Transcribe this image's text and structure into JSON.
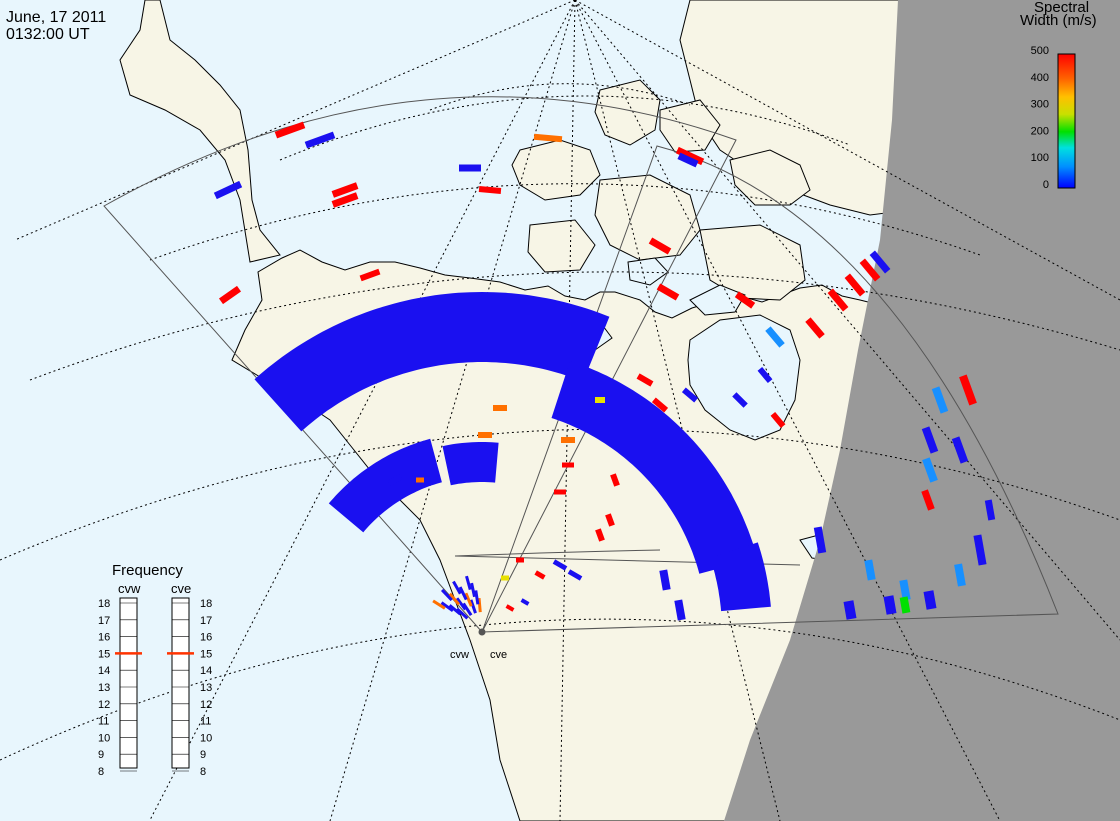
{
  "header": {
    "date": "June, 17 2011",
    "time": "0132:00 UT"
  },
  "colorbar": {
    "title_line1": "Spectral",
    "title_line2": "Width (m/s)",
    "ticks": [
      "500",
      "400",
      "300",
      "200",
      "100",
      "0"
    ],
    "colors": [
      "#0000ff",
      "#0090ff",
      "#00e0e0",
      "#00e000",
      "#c8e000",
      "#ffc000",
      "#ff6000",
      "#ff0000"
    ]
  },
  "frequency_panel": {
    "title": "Frequency",
    "left_label": "cvw",
    "right_label": "cve",
    "scale": [
      "18",
      "17",
      "16",
      "15",
      "14",
      "13",
      "12",
      "11",
      "10",
      "9",
      "8"
    ],
    "cvw_value": 15,
    "cve_value": 15,
    "marker_color": "#ff3300"
  },
  "radars": {
    "west_label": "cvw",
    "east_label": "cve"
  },
  "map_colors": {
    "ocean": "#e8f6fd",
    "land": "#f7f5e6",
    "night": "#999999",
    "scatter_main": "#1a10f0"
  }
}
